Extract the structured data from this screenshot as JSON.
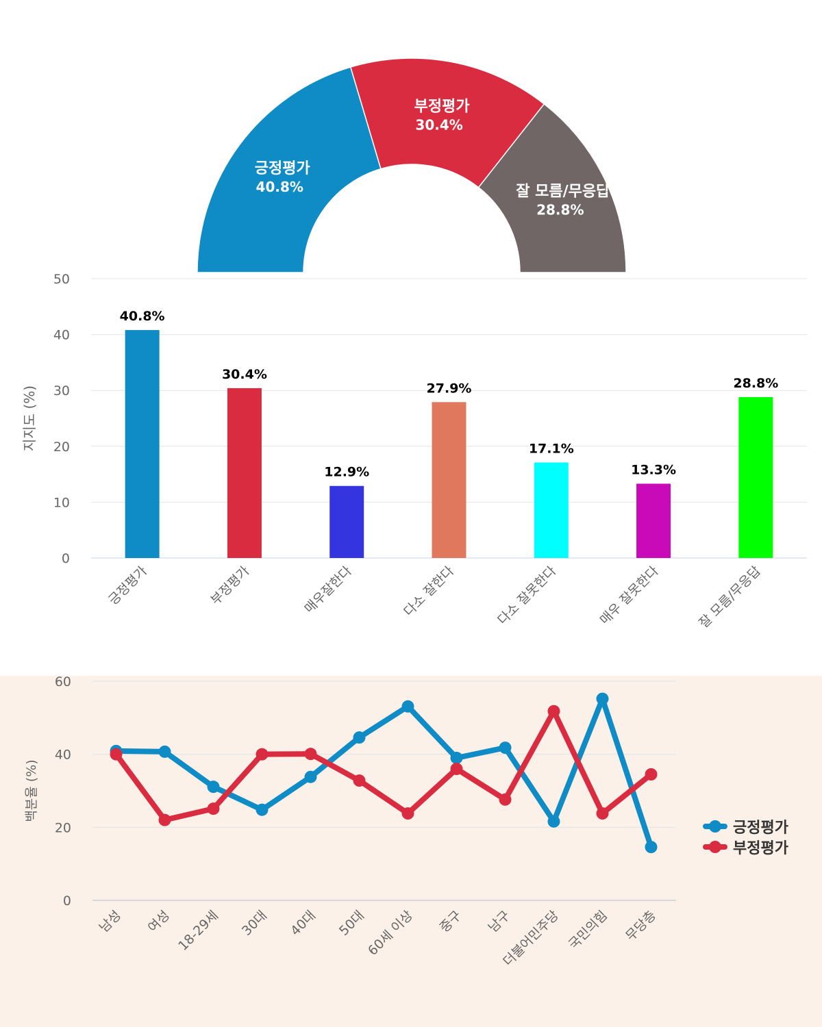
{
  "chart_data": [
    {
      "type": "pie",
      "variant": "half-donut",
      "slices": [
        {
          "label": "긍정평가",
          "value": 40.8,
          "value_label": "40.8%",
          "color": "#0f8bc5"
        },
        {
          "label": "부정평가",
          "value": 30.4,
          "value_label": "30.4%",
          "color": "#da2c40"
        },
        {
          "label": "잘 모름/무응답",
          "value": 28.8,
          "value_label": "28.8%",
          "color": "#716666"
        }
      ]
    },
    {
      "type": "bar",
      "ylabel": "지지도 (%)",
      "ylim": [
        0,
        50
      ],
      "yticks": [
        "0",
        "10",
        "20",
        "30",
        "40",
        "50"
      ],
      "grid": true,
      "categories": [
        "긍정평가",
        "부정평가",
        "매우잘한다",
        "다소 잘한다",
        "다소 잘못한다",
        "매우 잘못한다",
        "잘 모름/무응답"
      ],
      "values": [
        40.8,
        30.4,
        12.9,
        27.9,
        17.1,
        13.3,
        28.8
      ],
      "value_labels": [
        "40.8%",
        "30.4%",
        "12.9%",
        "27.9%",
        "17.1%",
        "13.3%",
        "28.8%"
      ],
      "colors": [
        "#0f8bc5",
        "#da2c40",
        "#3535e0",
        "#df785c",
        "#00ffff",
        "#c80ab8",
        "#00ff00"
      ]
    },
    {
      "type": "line",
      "ylabel": "백분율 (%)",
      "ylim": [
        0,
        60
      ],
      "yticks": [
        "0",
        "20",
        "40",
        "60"
      ],
      "grid": true,
      "legend": "right",
      "categories": [
        "남성",
        "여성",
        "18-29세",
        "30대",
        "40대",
        "50대",
        "60세 이상",
        "중구",
        "남구",
        "더불어민주당",
        "국민의힘",
        "무당층"
      ],
      "series": [
        {
          "name": "긍정평가",
          "color": "#0f8bc5",
          "values": [
            40.9,
            40.7,
            31.1,
            24.8,
            33.8,
            44.6,
            53.1,
            39.0,
            41.8,
            21.6,
            55.2,
            14.6
          ]
        },
        {
          "name": "부정평가",
          "color": "#da2c40",
          "values": [
            40.0,
            22.0,
            25.1,
            40.0,
            40.1,
            32.8,
            23.8,
            36.0,
            27.6,
            51.8,
            23.8,
            34.5
          ]
        }
      ]
    }
  ]
}
